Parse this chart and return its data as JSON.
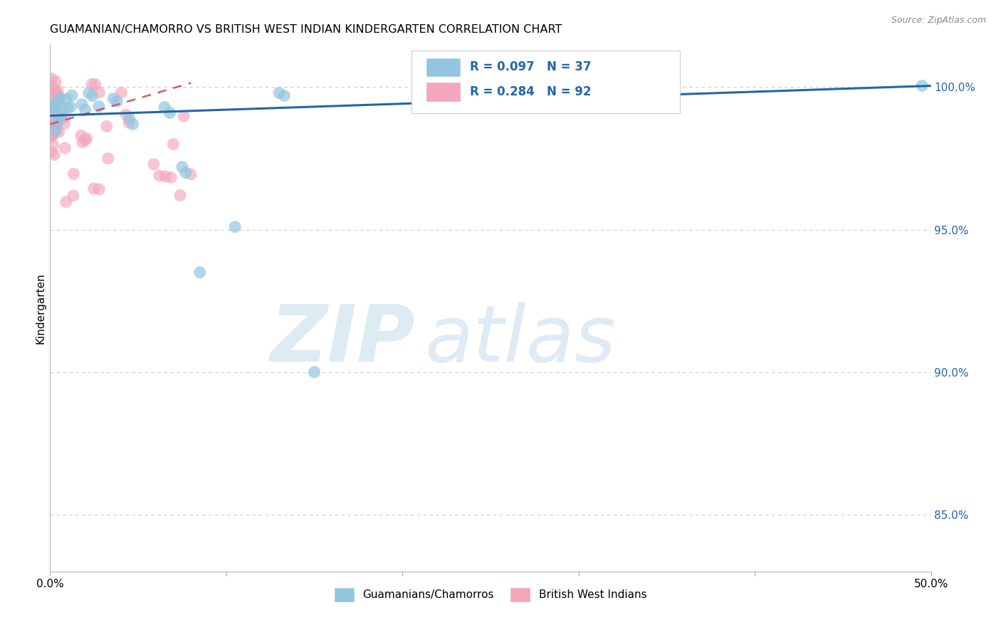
{
  "title": "GUAMANIAN/CHAMORRO VS BRITISH WEST INDIAN KINDERGARTEN CORRELATION CHART",
  "source": "Source: ZipAtlas.com",
  "ylabel": "Kindergarten",
  "xlim": [
    0.0,
    50.0
  ],
  "ylim": [
    83.0,
    101.5
  ],
  "yticks": [
    85.0,
    90.0,
    95.0,
    100.0
  ],
  "xtick_labels": [
    "0.0%",
    "",
    "",
    "",
    "",
    "50.0%"
  ],
  "ytick_labels": [
    "85.0%",
    "90.0%",
    "95.0%",
    "100.0%"
  ],
  "blue_color": "#92c5de",
  "pink_color": "#f4a6bb",
  "blue_line_color": "#2166ac",
  "pink_line_color": "#d6556a",
  "r_blue": 0.097,
  "n_blue": 37,
  "r_pink": 0.284,
  "n_pink": 92,
  "legend_label_blue": "Guamanians/Chamorros",
  "legend_label_pink": "British West Indians",
  "watermark_zip": "ZIP",
  "watermark_atlas": "atlas",
  "background_color": "#ffffff",
  "grid_color": "#cccccc",
  "blue_line_x0": 0.0,
  "blue_line_y0": 99.0,
  "blue_line_x1": 50.0,
  "blue_line_y1": 100.05,
  "pink_line_x0": 0.0,
  "pink_line_y0": 98.7,
  "pink_line_x1": 8.0,
  "pink_line_y1": 100.15
}
